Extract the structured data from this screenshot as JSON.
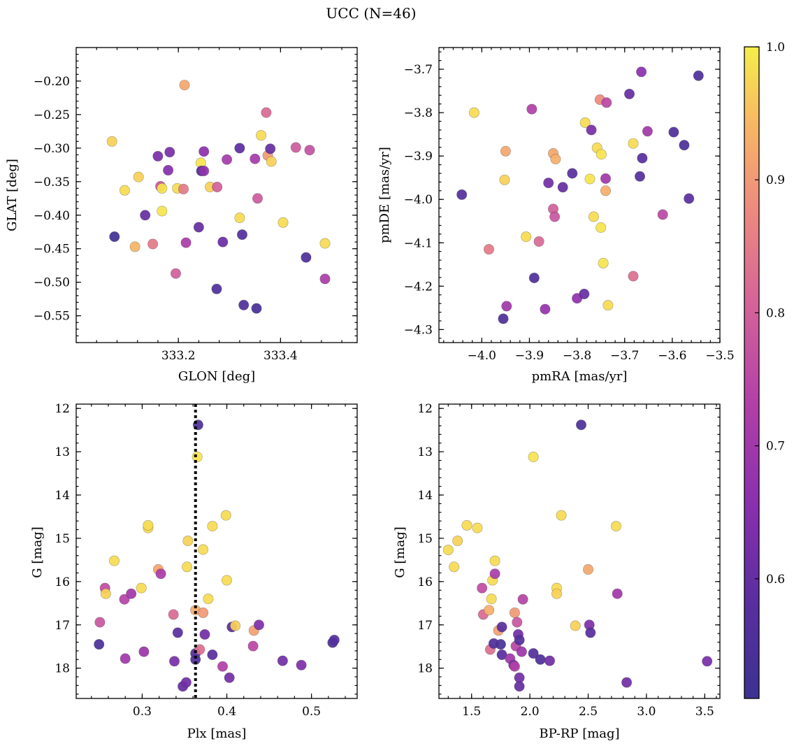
{
  "figure": {
    "title": "UCC (N=46)"
  },
  "colorbar": {
    "min": 0.51,
    "max": 1.0,
    "ticks": [
      0.6,
      0.7,
      0.8,
      0.9,
      1.0
    ],
    "tick_labels": [
      "0.6",
      "0.7",
      "0.8",
      "0.9",
      "1.0"
    ],
    "colormap": "plasma"
  },
  "chart_data": [
    {
      "type": "scatter",
      "id": "sky",
      "xlabel": "GLON [deg]",
      "ylabel": "GLAT [deg]",
      "xlim": [
        333.0,
        333.55
      ],
      "ylim": [
        -0.59,
        -0.15
      ],
      "xticks": [
        333.2,
        333.4
      ],
      "xtick_labels": [
        "333.2",
        "333.4"
      ],
      "yticks": [
        -0.2,
        -0.25,
        -0.3,
        -0.35,
        -0.4,
        -0.45,
        -0.5,
        -0.55
      ],
      "ytick_labels": [
        "−0.20",
        "−0.25",
        "−0.30",
        "−0.35",
        "−0.40",
        "−0.45",
        "−0.50",
        "−0.55"
      ],
      "points": [
        {
          "x": 333.07,
          "y": -0.29,
          "c": 0.97
        },
        {
          "x": 333.095,
          "y": -0.363,
          "c": 0.98
        },
        {
          "x": 333.115,
          "y": -0.447,
          "c": 0.94
        },
        {
          "x": 333.075,
          "y": -0.432,
          "c": 0.53
        },
        {
          "x": 333.122,
          "y": -0.343,
          "c": 0.97
        },
        {
          "x": 333.135,
          "y": -0.4,
          "c": 0.6
        },
        {
          "x": 333.15,
          "y": -0.443,
          "c": 0.85
        },
        {
          "x": 333.16,
          "y": -0.312,
          "c": 0.63
        },
        {
          "x": 333.165,
          "y": -0.357,
          "c": 0.78
        },
        {
          "x": 333.168,
          "y": -0.394,
          "c": 0.99
        },
        {
          "x": 333.168,
          "y": -0.36,
          "c": 0.99
        },
        {
          "x": 333.18,
          "y": -0.333,
          "c": 0.65
        },
        {
          "x": 333.183,
          "y": -0.306,
          "c": 0.63
        },
        {
          "x": 333.195,
          "y": -0.487,
          "c": 0.8
        },
        {
          "x": 333.198,
          "y": -0.36,
          "c": 0.98
        },
        {
          "x": 333.21,
          "y": -0.361,
          "c": 0.85
        },
        {
          "x": 333.212,
          "y": -0.206,
          "c": 0.92
        },
        {
          "x": 333.215,
          "y": -0.441,
          "c": 0.72
        },
        {
          "x": 333.24,
          "y": -0.418,
          "c": 0.6
        },
        {
          "x": 333.244,
          "y": -0.322,
          "c": 0.99
        },
        {
          "x": 333.245,
          "y": -0.334,
          "c": 0.55
        },
        {
          "x": 333.25,
          "y": -0.305,
          "c": 0.66
        },
        {
          "x": 333.25,
          "y": -0.334,
          "c": 0.67
        },
        {
          "x": 333.262,
          "y": -0.358,
          "c": 0.97
        },
        {
          "x": 333.275,
          "y": -0.51,
          "c": 0.56
        },
        {
          "x": 333.276,
          "y": -0.358,
          "c": 0.8
        },
        {
          "x": 333.287,
          "y": -0.44,
          "c": 0.61
        },
        {
          "x": 333.295,
          "y": -0.317,
          "c": 0.71
        },
        {
          "x": 333.32,
          "y": -0.3,
          "c": 0.59
        },
        {
          "x": 333.32,
          "y": -0.404,
          "c": 0.98
        },
        {
          "x": 333.325,
          "y": -0.429,
          "c": 0.57
        },
        {
          "x": 333.328,
          "y": -0.534,
          "c": 0.56
        },
        {
          "x": 333.35,
          "y": -0.316,
          "c": 0.71
        },
        {
          "x": 333.353,
          "y": -0.539,
          "c": 0.54
        },
        {
          "x": 333.355,
          "y": -0.375,
          "c": 0.79
        },
        {
          "x": 333.362,
          "y": -0.281,
          "c": 0.98
        },
        {
          "x": 333.372,
          "y": -0.247,
          "c": 0.82
        },
        {
          "x": 333.375,
          "y": -0.311,
          "c": 0.9
        },
        {
          "x": 333.38,
          "y": -0.301,
          "c": 0.6
        },
        {
          "x": 333.382,
          "y": -0.32,
          "c": 0.97
        },
        {
          "x": 333.405,
          "y": -0.411,
          "c": 0.98
        },
        {
          "x": 333.43,
          "y": -0.299,
          "c": 0.79
        },
        {
          "x": 333.45,
          "y": -0.463,
          "c": 0.56
        },
        {
          "x": 333.457,
          "y": -0.303,
          "c": 0.77
        },
        {
          "x": 333.487,
          "y": -0.442,
          "c": 0.98
        },
        {
          "x": 333.487,
          "y": -0.495,
          "c": 0.72
        }
      ]
    },
    {
      "type": "scatter",
      "id": "pm",
      "xlabel": "pmRA [mas/yr]",
      "ylabel": "pmDE [mas/yr]",
      "xlim": [
        -4.09,
        -3.5
      ],
      "ylim": [
        -4.33,
        -3.65
      ],
      "xticks": [
        -4.0,
        -3.9,
        -3.8,
        -3.7,
        -3.6,
        -3.5
      ],
      "xtick_labels": [
        "−4.0",
        "−3.9",
        "−3.8",
        "−3.7",
        "−3.6",
        "−3.5"
      ],
      "yticks": [
        -3.7,
        -3.8,
        -3.9,
        -4.0,
        -4.1,
        -4.2,
        -4.3
      ],
      "ytick_labels": [
        "−3.7",
        "−3.8",
        "−3.9",
        "−4.0",
        "−4.1",
        "−4.2",
        "−4.3"
      ],
      "points": [
        {
          "x": -4.042,
          "y": -3.989,
          "c": 0.57
        },
        {
          "x": -4.016,
          "y": -3.8,
          "c": 0.98
        },
        {
          "x": -3.985,
          "y": -4.115,
          "c": 0.85
        },
        {
          "x": -3.955,
          "y": -4.275,
          "c": 0.56
        },
        {
          "x": -3.952,
          "y": -3.955,
          "c": 0.97
        },
        {
          "x": -3.95,
          "y": -3.889,
          "c": 0.92
        },
        {
          "x": -3.948,
          "y": -4.246,
          "c": 0.7
        },
        {
          "x": -3.907,
          "y": -4.086,
          "c": 0.98
        },
        {
          "x": -3.895,
          "y": -3.792,
          "c": 0.73
        },
        {
          "x": -3.89,
          "y": -4.181,
          "c": 0.56
        },
        {
          "x": -3.88,
          "y": -4.097,
          "c": 0.82
        },
        {
          "x": -3.867,
          "y": -4.253,
          "c": 0.68
        },
        {
          "x": -3.86,
          "y": -3.962,
          "c": 0.62
        },
        {
          "x": -3.85,
          "y": -3.894,
          "c": 0.92
        },
        {
          "x": -3.85,
          "y": -4.022,
          "c": 0.8
        },
        {
          "x": -3.847,
          "y": -4.04,
          "c": 0.78
        },
        {
          "x": -3.845,
          "y": -3.907,
          "c": 0.93
        },
        {
          "x": -3.83,
          "y": -3.972,
          "c": 0.6
        },
        {
          "x": -3.81,
          "y": -3.94,
          "c": 0.58
        },
        {
          "x": -3.8,
          "y": -4.228,
          "c": 0.67
        },
        {
          "x": -3.785,
          "y": -4.218,
          "c": 0.6
        },
        {
          "x": -3.783,
          "y": -3.823,
          "c": 0.98
        },
        {
          "x": -3.773,
          "y": -3.953,
          "c": 0.99
        },
        {
          "x": -3.77,
          "y": -3.84,
          "c": 0.63
        },
        {
          "x": -3.765,
          "y": -4.04,
          "c": 0.98
        },
        {
          "x": -3.758,
          "y": -3.881,
          "c": 0.98
        },
        {
          "x": -3.752,
          "y": -3.77,
          "c": 0.88
        },
        {
          "x": -3.75,
          "y": -4.065,
          "c": 0.99
        },
        {
          "x": -3.749,
          "y": -3.896,
          "c": 0.99
        },
        {
          "x": -3.745,
          "y": -4.147,
          "c": 0.99
        },
        {
          "x": -3.74,
          "y": -3.98,
          "c": 0.93
        },
        {
          "x": -3.74,
          "y": -3.952,
          "c": 0.7
        },
        {
          "x": -3.738,
          "y": -3.777,
          "c": 0.75
        },
        {
          "x": -3.735,
          "y": -4.244,
          "c": 0.98
        },
        {
          "x": -3.69,
          "y": -3.757,
          "c": 0.6
        },
        {
          "x": -3.682,
          "y": -3.871,
          "c": 0.98
        },
        {
          "x": -3.682,
          "y": -4.177,
          "c": 0.83
        },
        {
          "x": -3.668,
          "y": -3.947,
          "c": 0.57
        },
        {
          "x": -3.665,
          "y": -3.706,
          "c": 0.66
        },
        {
          "x": -3.663,
          "y": -3.905,
          "c": 0.58
        },
        {
          "x": -3.652,
          "y": -3.843,
          "c": 0.7
        },
        {
          "x": -3.62,
          "y": -4.035,
          "c": 0.75
        },
        {
          "x": -3.597,
          "y": -3.845,
          "c": 0.56
        },
        {
          "x": -3.575,
          "y": -3.875,
          "c": 0.55
        },
        {
          "x": -3.565,
          "y": -3.998,
          "c": 0.58
        },
        {
          "x": -3.545,
          "y": -3.715,
          "c": 0.56
        }
      ]
    },
    {
      "type": "scatter",
      "id": "plx",
      "xlabel": "Plx [mas]",
      "ylabel": "G [mag]",
      "xlim": [
        0.222,
        0.554
      ],
      "ylim": [
        18.7,
        11.9
      ],
      "y_inverted": true,
      "xticks": [
        0.3,
        0.4,
        0.5
      ],
      "xtick_labels": [
        "0.3",
        "0.4",
        "0.5"
      ],
      "yticks": [
        12,
        13,
        14,
        15,
        16,
        17,
        18
      ],
      "ytick_labels": [
        "12",
        "13",
        "14",
        "15",
        "16",
        "17",
        "18"
      ],
      "vline": {
        "x": 0.363,
        "style": "dotted"
      },
      "points": [
        {
          "x": 0.249,
          "y": 17.45,
          "c": 0.55
        },
        {
          "x": 0.25,
          "y": 16.94,
          "c": 0.78
        },
        {
          "x": 0.256,
          "y": 16.15,
          "c": 0.76
        },
        {
          "x": 0.257,
          "y": 16.28,
          "c": 0.97
        },
        {
          "x": 0.267,
          "y": 15.52,
          "c": 0.98
        },
        {
          "x": 0.279,
          "y": 16.41,
          "c": 0.74
        },
        {
          "x": 0.28,
          "y": 17.78,
          "c": 0.7
        },
        {
          "x": 0.287,
          "y": 16.28,
          "c": 0.7
        },
        {
          "x": 0.299,
          "y": 16.15,
          "c": 0.98
        },
        {
          "x": 0.302,
          "y": 17.62,
          "c": 0.69
        },
        {
          "x": 0.307,
          "y": 14.76,
          "c": 0.98
        },
        {
          "x": 0.307,
          "y": 14.7,
          "c": 0.98
        },
        {
          "x": 0.319,
          "y": 15.72,
          "c": 0.92
        },
        {
          "x": 0.322,
          "y": 15.82,
          "c": 0.72
        },
        {
          "x": 0.337,
          "y": 16.76,
          "c": 0.82
        },
        {
          "x": 0.338,
          "y": 17.84,
          "c": 0.63
        },
        {
          "x": 0.342,
          "y": 17.18,
          "c": 0.58
        },
        {
          "x": 0.348,
          "y": 18.42,
          "c": 0.6
        },
        {
          "x": 0.352,
          "y": 18.33,
          "c": 0.62
        },
        {
          "x": 0.353,
          "y": 15.66,
          "c": 0.98
        },
        {
          "x": 0.354,
          "y": 15.06,
          "c": 0.97
        },
        {
          "x": 0.363,
          "y": 16.66,
          "c": 0.93
        },
        {
          "x": 0.363,
          "y": 17.8,
          "c": 0.56
        },
        {
          "x": 0.363,
          "y": 17.66,
          "c": 0.57
        },
        {
          "x": 0.365,
          "y": 13.12,
          "c": 0.99
        },
        {
          "x": 0.366,
          "y": 12.38,
          "c": 0.55
        },
        {
          "x": 0.368,
          "y": 17.57,
          "c": 0.83
        },
        {
          "x": 0.372,
          "y": 15.26,
          "c": 0.98
        },
        {
          "x": 0.372,
          "y": 16.72,
          "c": 0.9
        },
        {
          "x": 0.374,
          "y": 17.22,
          "c": 0.62
        },
        {
          "x": 0.378,
          "y": 16.4,
          "c": 0.98
        },
        {
          "x": 0.383,
          "y": 14.72,
          "c": 0.98
        },
        {
          "x": 0.383,
          "y": 17.69,
          "c": 0.58
        },
        {
          "x": 0.395,
          "y": 17.96,
          "c": 0.73
        },
        {
          "x": 0.399,
          "y": 14.47,
          "c": 0.98
        },
        {
          "x": 0.4,
          "y": 15.97,
          "c": 0.98
        },
        {
          "x": 0.403,
          "y": 18.22,
          "c": 0.62
        },
        {
          "x": 0.406,
          "y": 17.05,
          "c": 0.58
        },
        {
          "x": 0.41,
          "y": 17.02,
          "c": 0.97
        },
        {
          "x": 0.431,
          "y": 17.49,
          "c": 0.75
        },
        {
          "x": 0.432,
          "y": 17.13,
          "c": 0.91
        },
        {
          "x": 0.438,
          "y": 17.0,
          "c": 0.64
        },
        {
          "x": 0.466,
          "y": 17.83,
          "c": 0.62
        },
        {
          "x": 0.488,
          "y": 17.93,
          "c": 0.64
        },
        {
          "x": 0.525,
          "y": 17.41,
          "c": 0.56
        },
        {
          "x": 0.527,
          "y": 17.35,
          "c": 0.57
        }
      ]
    },
    {
      "type": "scatter",
      "id": "cmd",
      "xlabel": "BP-RP [mag]",
      "ylabel": "G [mag]",
      "xlim": [
        1.22,
        3.63
      ],
      "ylim": [
        18.7,
        11.9
      ],
      "y_inverted": true,
      "xticks": [
        1.5,
        2.0,
        2.5,
        3.0,
        3.5
      ],
      "xtick_labels": [
        "1.5",
        "2.0",
        "2.5",
        "3.0",
        "3.5"
      ],
      "yticks": [
        12,
        13,
        14,
        15,
        16,
        17,
        18
      ],
      "ytick_labels": [
        "12",
        "13",
        "14",
        "15",
        "16",
        "17",
        "18"
      ],
      "points": [
        {
          "x": 1.3,
          "y": 15.27,
          "c": 0.98
        },
        {
          "x": 1.35,
          "y": 15.66,
          "c": 0.98
        },
        {
          "x": 1.38,
          "y": 15.06,
          "c": 0.97
        },
        {
          "x": 1.46,
          "y": 14.7,
          "c": 0.98
        },
        {
          "x": 1.55,
          "y": 14.76,
          "c": 0.98
        },
        {
          "x": 1.59,
          "y": 16.15,
          "c": 0.76
        },
        {
          "x": 1.6,
          "y": 16.76,
          "c": 0.82
        },
        {
          "x": 1.65,
          "y": 16.66,
          "c": 0.93
        },
        {
          "x": 1.66,
          "y": 17.57,
          "c": 0.83
        },
        {
          "x": 1.67,
          "y": 16.4,
          "c": 0.98
        },
        {
          "x": 1.68,
          "y": 15.97,
          "c": 0.98
        },
        {
          "x": 1.69,
          "y": 17.43,
          "c": 0.56
        },
        {
          "x": 1.7,
          "y": 15.52,
          "c": 0.98
        },
        {
          "x": 1.7,
          "y": 15.82,
          "c": 0.72
        },
        {
          "x": 1.73,
          "y": 17.13,
          "c": 0.91
        },
        {
          "x": 1.75,
          "y": 17.45,
          "c": 0.55
        },
        {
          "x": 1.76,
          "y": 17.05,
          "c": 0.58
        },
        {
          "x": 1.76,
          "y": 17.69,
          "c": 0.58
        },
        {
          "x": 1.83,
          "y": 17.78,
          "c": 0.7
        },
        {
          "x": 1.86,
          "y": 17.93,
          "c": 0.64
        },
        {
          "x": 1.87,
          "y": 17.96,
          "c": 0.73
        },
        {
          "x": 1.87,
          "y": 16.72,
          "c": 0.9
        },
        {
          "x": 1.88,
          "y": 17.49,
          "c": 0.75
        },
        {
          "x": 1.89,
          "y": 16.94,
          "c": 0.78
        },
        {
          "x": 1.9,
          "y": 17.22,
          "c": 0.62
        },
        {
          "x": 1.91,
          "y": 17.35,
          "c": 0.57
        },
        {
          "x": 1.91,
          "y": 18.22,
          "c": 0.62
        },
        {
          "x": 1.91,
          "y": 18.42,
          "c": 0.6
        },
        {
          "x": 1.93,
          "y": 17.62,
          "c": 0.69
        },
        {
          "x": 1.94,
          "y": 16.41,
          "c": 0.74
        },
        {
          "x": 2.03,
          "y": 13.12,
          "c": 0.99
        },
        {
          "x": 2.03,
          "y": 17.66,
          "c": 0.57
        },
        {
          "x": 2.09,
          "y": 17.8,
          "c": 0.56
        },
        {
          "x": 2.17,
          "y": 17.83,
          "c": 0.62
        },
        {
          "x": 2.23,
          "y": 16.15,
          "c": 0.98
        },
        {
          "x": 2.23,
          "y": 16.28,
          "c": 0.97
        },
        {
          "x": 2.27,
          "y": 14.47,
          "c": 0.98
        },
        {
          "x": 2.39,
          "y": 17.02,
          "c": 0.97
        },
        {
          "x": 2.44,
          "y": 12.38,
          "c": 0.55
        },
        {
          "x": 2.5,
          "y": 15.72,
          "c": 0.92
        },
        {
          "x": 2.51,
          "y": 17.0,
          "c": 0.64
        },
        {
          "x": 2.52,
          "y": 17.18,
          "c": 0.58
        },
        {
          "x": 2.74,
          "y": 14.72,
          "c": 0.98
        },
        {
          "x": 2.75,
          "y": 16.28,
          "c": 0.7
        },
        {
          "x": 2.83,
          "y": 18.33,
          "c": 0.62
        },
        {
          "x": 3.52,
          "y": 17.84,
          "c": 0.63
        }
      ]
    }
  ]
}
